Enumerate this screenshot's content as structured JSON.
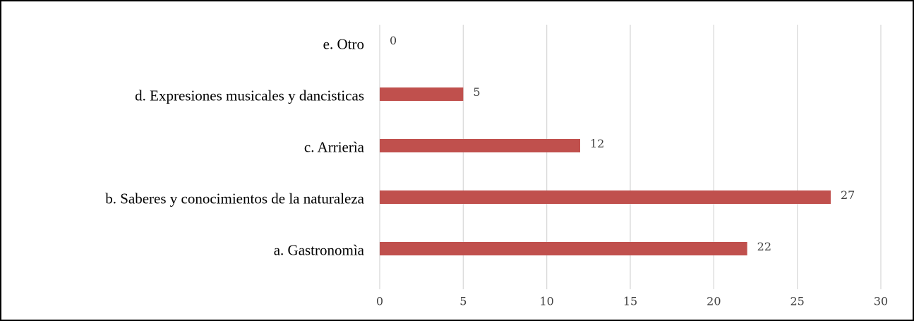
{
  "chart_data": {
    "type": "barh",
    "categories": [
      "a. Gastronomìa",
      "b. Saberes y conocimientos de la naturaleza",
      "c. Arrierìa",
      "d. Expresiones musicales y dancisticas",
      "e. Otro"
    ],
    "values": [
      22,
      27,
      12,
      5,
      0
    ],
    "color": "#c0504d",
    "xlim": [
      0,
      30
    ],
    "xticks": [
      0,
      5,
      10,
      15,
      20,
      25,
      30
    ],
    "grid": true
  }
}
